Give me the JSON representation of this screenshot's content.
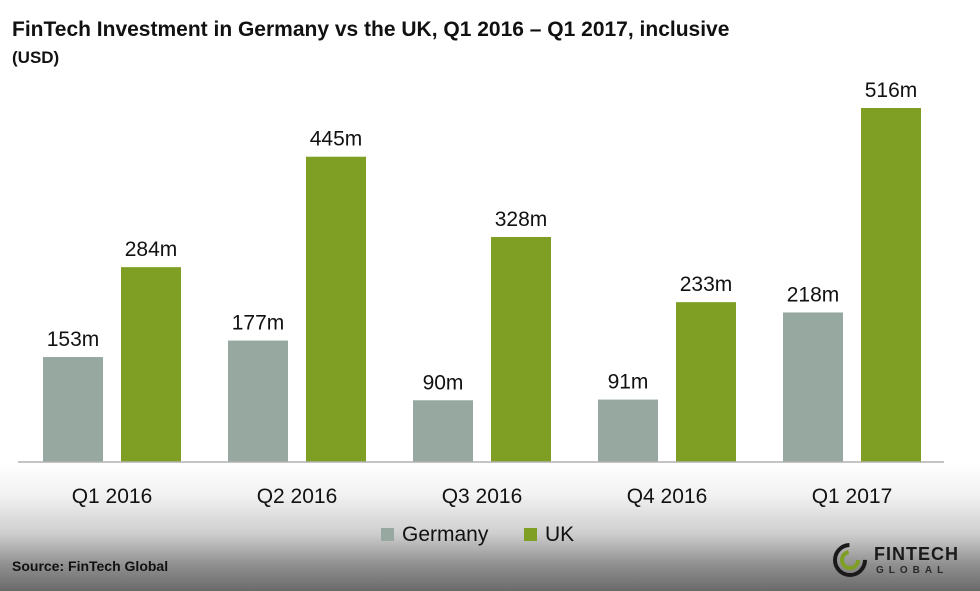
{
  "chart_data": {
    "type": "bar",
    "title": "FinTech Investment in Germany vs the UK, Q1 2016 – Q1 2017, inclusive",
    "subtitle": "(USD)",
    "categories": [
      "Q1 2016",
      "Q2 2016",
      "Q3 2016",
      "Q4 2016",
      "Q1 2017"
    ],
    "series": [
      {
        "name": "Germany",
        "color": "#97a8a0",
        "values": [
          153,
          177,
          90,
          91,
          218
        ],
        "labels": [
          "153m",
          "177m",
          "90m",
          "91m",
          "218m"
        ]
      },
      {
        "name": "UK",
        "color": "#7f9f24",
        "values": [
          284,
          445,
          328,
          233,
          516
        ],
        "labels": [
          "284m",
          "445m",
          "328m",
          "233m",
          "516m"
        ]
      }
    ],
    "xlabel": "",
    "ylabel": "",
    "ylim": [
      0,
      516
    ],
    "grid": false,
    "legend_position": "bottom"
  },
  "source": "Source: FinTech Global",
  "logo": {
    "word": "FINTECH",
    "sub": "GLOBAL",
    "icon": "fintech-global-logo-icon"
  }
}
